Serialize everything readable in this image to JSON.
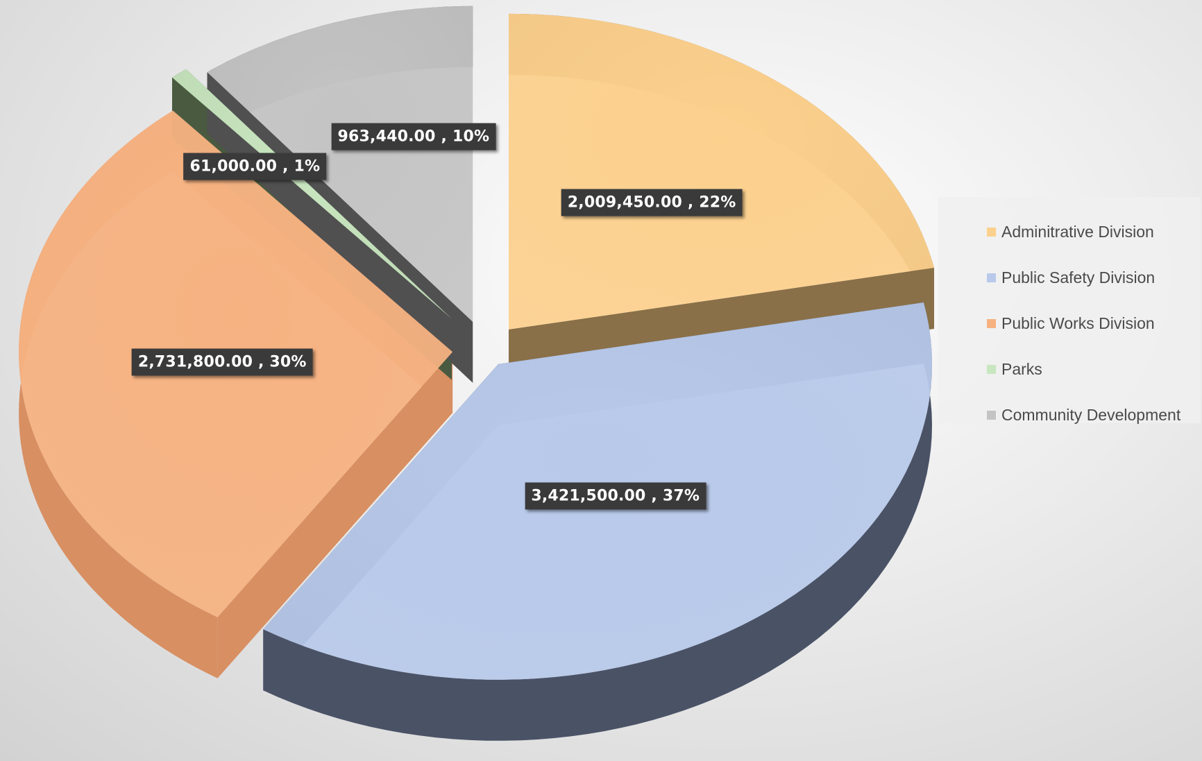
{
  "chart_data": {
    "type": "pie",
    "style": "3d-exploded",
    "legend_position": "right",
    "slices": [
      {
        "name": "Adminitrative Division",
        "value": 2009450.0,
        "percent": 22,
        "label": "2,009,450.00 , 22%",
        "color": "#fcd08d",
        "side_color": "#8a7048"
      },
      {
        "name": "Public Safety Division",
        "value": 3421500.0,
        "percent": 37,
        "label": "3,421,500.00 , 37%",
        "color": "#b8c9ea",
        "side_color": "#4a5266"
      },
      {
        "name": "Public Works Division",
        "value": 2731800.0,
        "percent": 30,
        "label": "2,731,800.00 , 30%",
        "color": "#f6b281",
        "side_color": "#d88f62"
      },
      {
        "name": "Parks",
        "value": 61000.0,
        "percent": 1,
        "label": "61,000.00 , 1%",
        "color": "#c8e6bf",
        "side_color": "#4a5a40"
      },
      {
        "name": "Community Development",
        "value": 963440.0,
        "percent": 10,
        "label": "963,440.00 , 10%",
        "color": "#c4c4c4",
        "side_color": "#505050"
      }
    ]
  }
}
